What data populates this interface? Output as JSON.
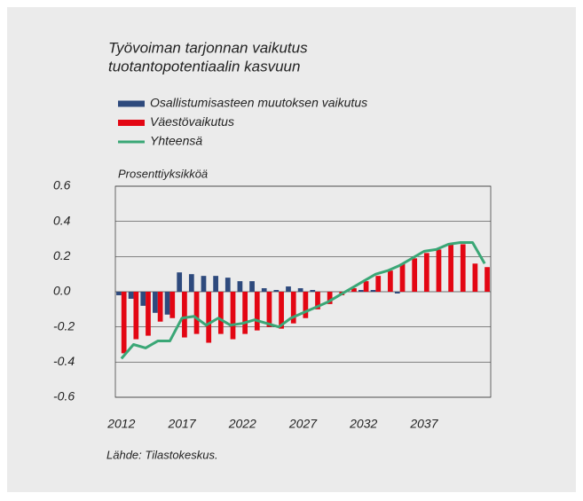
{
  "chart_data": {
    "type": "bar",
    "title": [
      "Työvoiman tarjonnan vaikutus",
      "tuotantopotentiaalin kasvuun"
    ],
    "y_axis_label": "Prosenttiyksikköä",
    "source": "Lähde: Tilastokeskus.",
    "categories": [
      "2012",
      null,
      null,
      null,
      null,
      "2017",
      null,
      null,
      null,
      null,
      "2022",
      null,
      null,
      null,
      null,
      "2027",
      null,
      null,
      null,
      null,
      "2032",
      null,
      null,
      null,
      null,
      "2037",
      null,
      null,
      null,
      null,
      null
    ],
    "series": [
      {
        "name": "Osallistumisasteen muutoksen vaikutus",
        "color": "#2e4a7d",
        "type": "bar",
        "values": [
          -0.02,
          -0.04,
          -0.08,
          -0.12,
          -0.13,
          0.11,
          0.1,
          0.09,
          0.09,
          0.08,
          0.06,
          0.06,
          0.02,
          0.01,
          0.03,
          0.02,
          0.01,
          0.0,
          0.0,
          0.0,
          0.01,
          0.01,
          0.0,
          -0.01,
          0.0,
          0.0,
          0.0,
          0.0,
          0.0,
          0.0,
          0.0
        ]
      },
      {
        "name": "Väestövaikutus",
        "color": "#e30613",
        "type": "bar",
        "values": [
          -0.35,
          -0.27,
          -0.25,
          -0.17,
          -0.15,
          -0.26,
          -0.24,
          -0.29,
          -0.24,
          -0.27,
          -0.24,
          -0.22,
          -0.2,
          -0.21,
          -0.18,
          -0.15,
          -0.1,
          -0.07,
          -0.02,
          0.02,
          0.06,
          0.09,
          0.12,
          0.16,
          0.19,
          0.22,
          0.24,
          0.27,
          0.27,
          0.16,
          0.14
        ]
      },
      {
        "name": "Yhteensä",
        "color": "#3aa776",
        "type": "line",
        "values": [
          -0.38,
          -0.3,
          -0.32,
          -0.28,
          -0.28,
          -0.15,
          -0.14,
          -0.19,
          -0.15,
          -0.19,
          -0.18,
          -0.16,
          -0.18,
          -0.2,
          -0.15,
          -0.12,
          -0.09,
          -0.06,
          -0.02,
          0.02,
          0.06,
          0.1,
          0.12,
          0.15,
          0.19,
          0.23,
          0.24,
          0.27,
          0.28,
          0.28,
          0.16
        ]
      }
    ],
    "ylim": [
      -0.6,
      0.6
    ],
    "yticks": [
      0.6,
      0.4,
      0.2,
      {
        "value": 0,
        "label": "0.0"
      },
      -0.2,
      -0.4,
      -0.6
    ],
    "grid": true
  }
}
